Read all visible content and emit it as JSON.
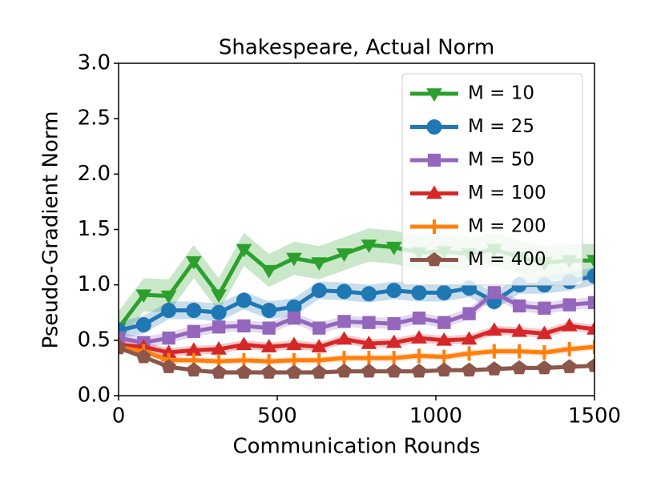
{
  "chart_data": {
    "type": "line",
    "title": "Shakespeare, Actual Norm",
    "x_label": "Communication Rounds",
    "y_label": "Pseudo-Gradient Norm",
    "x": [
      0,
      79,
      158,
      237,
      316,
      395,
      474,
      553,
      632,
      711,
      789,
      868,
      947,
      1026,
      1105,
      1184,
      1263,
      1342,
      1421,
      1500
    ],
    "series": [
      {
        "name": "M = 10",
        "color": "#2ca02c",
        "marker": "triangle-down",
        "spread": 0.15,
        "values": [
          0.61,
          0.91,
          0.9,
          1.21,
          0.91,
          1.32,
          1.13,
          1.24,
          1.2,
          1.28,
          1.36,
          1.34,
          1.29,
          1.3,
          1.28,
          1.32,
          1.25,
          1.2,
          1.22,
          1.22
        ]
      },
      {
        "name": "M = 25",
        "color": "#1f77b4",
        "marker": "circle",
        "spread": 0.08,
        "values": [
          0.59,
          0.64,
          0.77,
          0.77,
          0.75,
          0.86,
          0.77,
          0.8,
          0.95,
          0.94,
          0.92,
          0.95,
          0.93,
          0.93,
          0.97,
          0.85,
          1.0,
          1.0,
          1.03,
          1.08
        ]
      },
      {
        "name": "M = 50",
        "color": "#9467bd",
        "marker": "square",
        "spread": 0.05,
        "values": [
          0.52,
          0.48,
          0.52,
          0.58,
          0.62,
          0.63,
          0.61,
          0.7,
          0.61,
          0.67,
          0.66,
          0.65,
          0.7,
          0.66,
          0.74,
          0.93,
          0.81,
          0.79,
          0.82,
          0.84
        ]
      },
      {
        "name": "M = 100",
        "color": "#d62728",
        "marker": "triangle-up",
        "spread": 0.04,
        "values": [
          0.46,
          0.44,
          0.39,
          0.41,
          0.42,
          0.46,
          0.44,
          0.46,
          0.44,
          0.51,
          0.47,
          0.48,
          0.52,
          0.5,
          0.51,
          0.59,
          0.58,
          0.56,
          0.63,
          0.6
        ]
      },
      {
        "name": "M = 200",
        "color": "#ff7f0e",
        "marker": "plus",
        "spread": 0.03,
        "values": [
          0.44,
          0.4,
          0.32,
          0.32,
          0.31,
          0.32,
          0.31,
          0.32,
          0.32,
          0.34,
          0.34,
          0.34,
          0.36,
          0.35,
          0.38,
          0.4,
          0.4,
          0.39,
          0.42,
          0.44
        ]
      },
      {
        "name": "M = 400",
        "color": "#8c564b",
        "marker": "pentagon",
        "spread": 0.02,
        "values": [
          0.43,
          0.35,
          0.26,
          0.23,
          0.21,
          0.21,
          0.21,
          0.21,
          0.21,
          0.22,
          0.22,
          0.22,
          0.22,
          0.23,
          0.23,
          0.24,
          0.25,
          0.25,
          0.26,
          0.27
        ]
      }
    ],
    "xlim": [
      0,
      1500
    ],
    "xticks": [
      0,
      500,
      1000,
      1500
    ],
    "ylim": [
      0,
      3
    ],
    "yticks": [
      {
        "value": 0,
        "label": "0.0"
      },
      {
        "value": 0.5,
        "label": "0.5"
      },
      {
        "value": 1,
        "label": "1.0"
      },
      {
        "value": 1.5,
        "label": "1.5"
      },
      {
        "value": 2,
        "label": "2.0"
      },
      {
        "value": 2.5,
        "label": "2.5"
      },
      {
        "value": 3,
        "label": "3.0"
      }
    ],
    "legend": "upper right",
    "grid": false
  }
}
